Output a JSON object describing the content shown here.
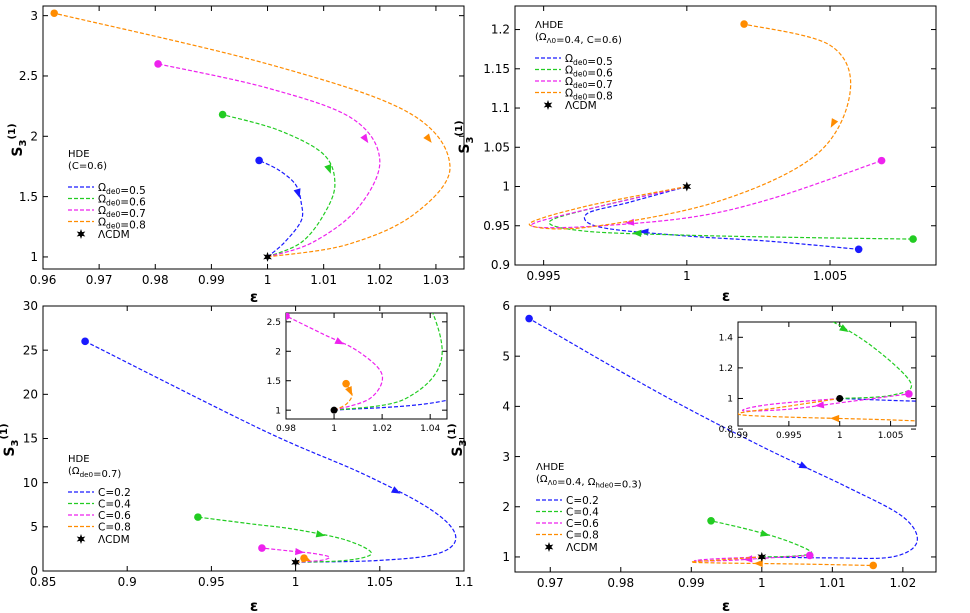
{
  "chart_data": [
    {
      "type": "line",
      "xlabel": "ε",
      "ylabel": "S₃⁽¹⁾",
      "xlim": [
        0.96,
        1.035
      ],
      "ylim": [
        0.9,
        3.08
      ],
      "xticks": [
        0.96,
        0.97,
        0.98,
        0.99,
        1,
        1.01,
        1.02,
        1.03
      ],
      "xtick_labels": [
        "0.96",
        "0.97",
        "0.98",
        "0.99",
        "1",
        "1.01",
        "1.02",
        "1.03"
      ],
      "yticks": [
        1,
        1.5,
        2,
        2.5,
        3
      ],
      "ytick_labels": [
        "1",
        "1.5",
        "2",
        "2.5",
        "3"
      ],
      "legend_title": [
        "HDE",
        "(C=0.6)"
      ],
      "legend_position": "left",
      "reference_label": "ΛCDM",
      "reference_point": [
        1.0,
        1.0
      ],
      "series": [
        {
          "name": "Ωde0=0.5",
          "color": "#1a1aff",
          "x": [
            1.0,
            1.003,
            1.006,
            1.006,
            1.005,
            1.002,
            0.9985
          ],
          "y": [
            1.0,
            1.12,
            1.3,
            1.45,
            1.6,
            1.72,
            1.8
          ]
        },
        {
          "name": "Ωde0=0.6",
          "color": "#22cc22",
          "x": [
            1.0,
            1.006,
            1.01,
            1.012,
            1.01,
            1.002,
            0.992
          ],
          "y": [
            1.0,
            1.12,
            1.35,
            1.6,
            1.85,
            2.05,
            2.18
          ]
        },
        {
          "name": "Ωde0=0.7",
          "color": "#ee22ee",
          "x": [
            1.0,
            1.008,
            1.016,
            1.02,
            1.015,
            1.0,
            0.9805
          ],
          "y": [
            1.0,
            1.12,
            1.4,
            1.8,
            2.15,
            2.4,
            2.6
          ]
        },
        {
          "name": "Ωde0=0.8",
          "color": "#ff8c00",
          "x": [
            1.0,
            1.014,
            1.026,
            1.0325,
            1.025,
            1.0,
            0.962
          ],
          "y": [
            1.0,
            1.1,
            1.35,
            1.75,
            2.2,
            2.6,
            3.02
          ]
        }
      ]
    },
    {
      "type": "line",
      "xlabel": "ε",
      "ylabel": "S₃⁽¹⁾",
      "xlim": [
        0.994,
        1.0087
      ],
      "ylim": [
        0.9,
        1.23
      ],
      "xticks": [
        0.995,
        1,
        1.005
      ],
      "xtick_labels": [
        "0.995",
        "1",
        "1.005"
      ],
      "yticks": [
        0.9,
        0.95,
        1,
        1.05,
        1.1,
        1.15,
        1.2
      ],
      "ytick_labels": [
        "0.9",
        "0.95",
        "1",
        "1.05",
        "1.1",
        "1.15",
        "1.2"
      ],
      "legend_title": [
        "ΛHDE",
        "(ΩΛ0=0.4, C=0.6)"
      ],
      "legend_position": "top-left",
      "reference_label": "ΛCDM",
      "reference_point": [
        1.0,
        1.0
      ],
      "series": [
        {
          "name": "Ωde0=0.5",
          "color": "#1a1aff",
          "x": [
            1.0,
            0.998,
            0.9965,
            0.997,
            1.0,
            1.003,
            1.006
          ],
          "y": [
            1.0,
            0.98,
            0.965,
            0.948,
            0.937,
            0.93,
            0.92
          ]
        },
        {
          "name": "Ωde0=0.6",
          "color": "#22cc22",
          "x": [
            1.0,
            0.997,
            0.9952,
            0.9965,
            1.0,
            1.004,
            1.0079
          ],
          "y": [
            1.0,
            0.975,
            0.955,
            0.943,
            0.938,
            0.935,
            0.933
          ]
        },
        {
          "name": "Ωde0=0.7",
          "color": "#ee22ee",
          "x": [
            1.0,
            0.997,
            0.9946,
            0.996,
            1.0,
            1.003,
            1.0068
          ],
          "y": [
            1.0,
            0.975,
            0.952,
            0.948,
            0.96,
            0.985,
            1.033
          ]
        },
        {
          "name": "Ωde0=0.8",
          "color": "#ff8c00",
          "x": [
            1.0,
            0.9965,
            0.9945,
            0.9965,
            1.001,
            1.0045,
            1.0057,
            1.005,
            1.002
          ],
          "y": [
            1.0,
            0.975,
            0.952,
            0.948,
            0.98,
            1.04,
            1.12,
            1.18,
            1.207
          ]
        }
      ]
    },
    {
      "type": "line",
      "xlabel": "ε",
      "ylabel": "S₃⁽¹⁾",
      "xlim": [
        0.85,
        1.1
      ],
      "ylim": [
        0,
        30
      ],
      "xticks": [
        0.85,
        0.9,
        0.95,
        1,
        1.05,
        1.1
      ],
      "xtick_labels": [
        "0.85",
        "0.9",
        "0.95",
        "1",
        "1.05",
        "1.1"
      ],
      "yticks": [
        0,
        5,
        10,
        15,
        20,
        25,
        30
      ],
      "ytick_labels": [
        "0",
        "5",
        "10",
        "15",
        "20",
        "25",
        "30"
      ],
      "legend_title": [
        "HDE",
        "(Ωde0=0.7)"
      ],
      "legend_position": "bottom-left",
      "reference_label": "ΛCDM",
      "reference_point": [
        1.0,
        1.0
      ],
      "series": [
        {
          "name": "C=0.2",
          "color": "#1a1aff",
          "x": [
            1.0,
            1.05,
            1.085,
            1.095,
            1.08,
            1.04,
            0.98,
            0.875
          ],
          "y": [
            1.0,
            1.2,
            2.0,
            4.0,
            7.0,
            11.0,
            16.0,
            26.0
          ]
        },
        {
          "name": "C=0.4",
          "color": "#22cc22",
          "x": [
            1.0,
            1.03,
            1.045,
            1.03,
            1.0,
            0.975,
            0.942
          ],
          "y": [
            1.0,
            1.2,
            2.0,
            3.5,
            4.7,
            5.3,
            6.1
          ]
        },
        {
          "name": "C=0.6",
          "color": "#ee22ee",
          "x": [
            1.0,
            1.015,
            1.02,
            1.01,
            0.995,
            0.98
          ],
          "y": [
            1.0,
            1.2,
            1.6,
            2.0,
            2.3,
            2.6
          ]
        },
        {
          "name": "C=0.8",
          "color": "#ff8c00",
          "x": [
            1.0,
            1.005,
            1.0075,
            1.006,
            1.005
          ],
          "y": [
            1.0,
            1.1,
            1.25,
            1.38,
            1.45
          ]
        }
      ],
      "inset": {
        "xlim": [
          0.98,
          1.047
        ],
        "ylim": [
          0.85,
          2.65
        ],
        "xticks": [
          0.98,
          1,
          1.02,
          1.04
        ],
        "xtick_labels": [
          "0.98",
          "1",
          "1.02",
          "1.04"
        ],
        "yticks": [
          1,
          1.5,
          2,
          2.5
        ],
        "ytick_labels": [
          "1",
          "1.5",
          "2",
          "2.5"
        ]
      }
    },
    {
      "type": "line",
      "xlabel": "ε",
      "ylabel": "S₃⁽¹⁾",
      "xlim": [
        0.965,
        1.0247
      ],
      "ylim": [
        0.7,
        6.0
      ],
      "xticks": [
        0.97,
        0.98,
        0.99,
        1,
        1.01,
        1.02
      ],
      "xtick_labels": [
        "0.97",
        "0.98",
        "0.99",
        "1",
        "1.01",
        "1.02"
      ],
      "yticks": [
        1,
        2,
        3,
        4,
        5,
        6
      ],
      "ytick_labels": [
        "1",
        "2",
        "3",
        "4",
        "5",
        "6"
      ],
      "legend_title": [
        "ΛHDE",
        "(ΩΛ0=0.4, Ωhde0=0.3)"
      ],
      "legend_position": "bottom-left",
      "reference_label": "ΛCDM",
      "reference_point": [
        1.0,
        1.0
      ],
      "series": [
        {
          "name": "C=0.2",
          "color": "#1a1aff",
          "x": [
            1.0,
            1.01,
            1.0185,
            1.022,
            1.02,
            1.012,
            1.0,
            0.985,
            0.967
          ],
          "y": [
            1.0,
            0.98,
            1.0,
            1.3,
            1.8,
            2.4,
            3.2,
            4.3,
            5.75
          ]
        },
        {
          "name": "C=0.4",
          "color": "#22cc22",
          "x": [
            1.0,
            1.005,
            1.007,
            1.003,
            0.998,
            0.9928
          ],
          "y": [
            1.0,
            1.02,
            1.1,
            1.35,
            1.55,
            1.72
          ]
        },
        {
          "name": "C=0.6",
          "color": "#ee22ee",
          "x": [
            1.0,
            0.993,
            0.9905,
            0.995,
            1.001,
            1.0068
          ],
          "y": [
            1.0,
            0.96,
            0.92,
            0.93,
            0.98,
            1.03
          ]
        },
        {
          "name": "C=0.8",
          "color": "#ff8c00",
          "x": [
            1.0,
            0.994,
            0.99,
            0.994,
            1.005,
            1.0158
          ],
          "y": [
            1.0,
            0.94,
            0.9,
            0.88,
            0.86,
            0.83
          ]
        }
      ],
      "inset": {
        "xlim": [
          0.99,
          1.0075
        ],
        "ylim": [
          0.82,
          1.5
        ],
        "xticks": [
          0.99,
          0.995,
          1,
          1.005
        ],
        "xtick_labels": [
          "0.99",
          "0.995",
          "1",
          "1.005"
        ],
        "yticks": [
          0.8,
          1,
          1.2,
          1.4
        ],
        "ytick_labels": [
          "0.8",
          "1",
          "1.2",
          "1.4"
        ]
      }
    }
  ]
}
